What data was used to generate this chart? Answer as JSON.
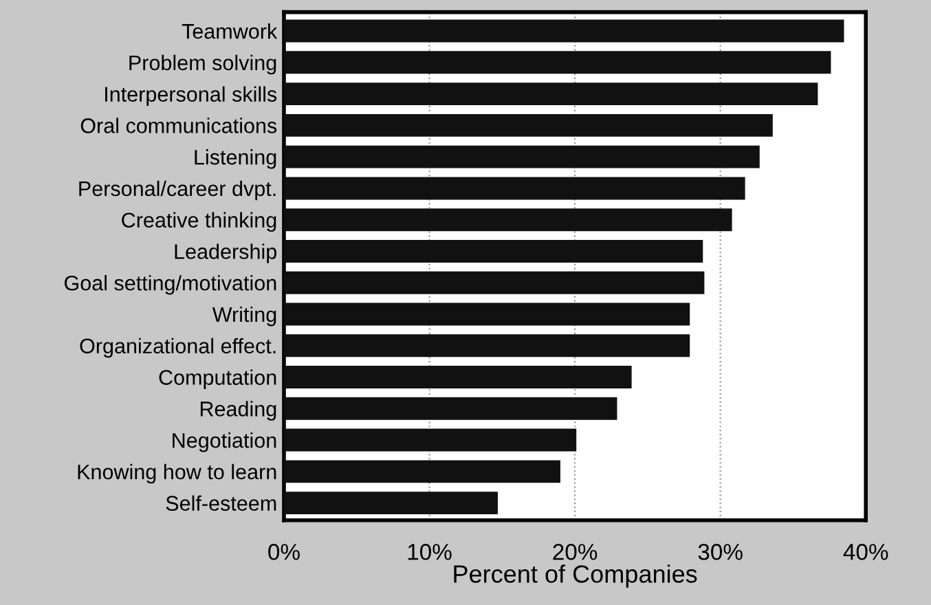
{
  "chart_data": {
    "type": "bar",
    "orientation": "horizontal",
    "xlabel": "Percent of Companies",
    "categories": [
      "Teamwork",
      "Problem solving",
      "Interpersonal skills",
      "Oral communications",
      "Listening",
      "Personal/career dvpt.",
      "Creative thinking",
      "Leadership",
      "Goal setting/motivation",
      "Writing",
      "Organizational effect.",
      "Computation",
      "Reading",
      "Negotiation",
      "Knowing how to learn",
      "Self-esteem"
    ],
    "values": [
      38.5,
      37.6,
      36.7,
      33.6,
      32.7,
      31.7,
      30.8,
      28.8,
      28.9,
      27.9,
      27.9,
      23.9,
      22.9,
      20.1,
      19.0,
      14.7
    ],
    "color": "#111111",
    "xlim": [
      0,
      40
    ],
    "xticks": [
      {
        "value": 0,
        "label": "0%"
      },
      {
        "value": 10,
        "label": "10%"
      },
      {
        "value": 20,
        "label": "20%"
      },
      {
        "value": 30,
        "label": "30%"
      },
      {
        "value": 40,
        "label": "40%"
      }
    ],
    "grid": "x",
    "legend": false
  }
}
